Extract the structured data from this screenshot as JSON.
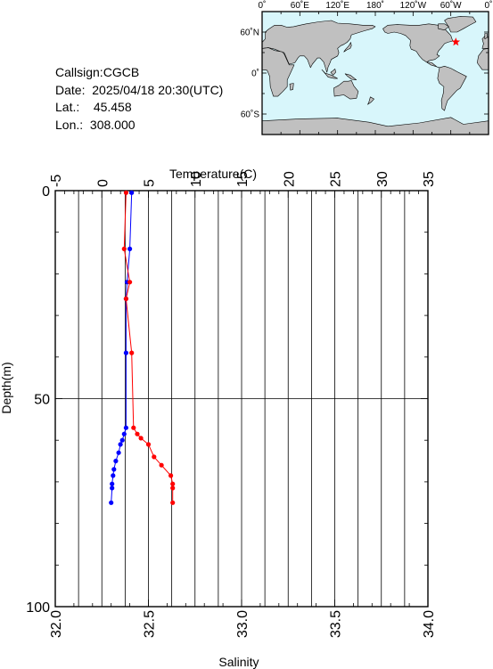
{
  "station": {
    "callsign_label": "Callsign:",
    "callsign": "CGCB",
    "date_label": "Date:",
    "date": "2025/04/18 20:30(UTC)",
    "lat_label": "Lat.:",
    "lat": "45.458",
    "lon_label": "Lon.:",
    "lon": "308.000"
  },
  "map": {
    "top_labels": [
      "0˚",
      "60˚E",
      "120˚E",
      "180˚",
      "120˚W",
      "60˚W",
      "0˚"
    ],
    "left_labels": [
      "60˚N",
      "0˚",
      "60˚S"
    ],
    "ocean_color": "#d8f6fb",
    "land_color": "#c0c0c0",
    "marker_color": "#ff0000",
    "marker": {
      "lon": 308.0,
      "lat": 45.458
    }
  },
  "chart_data": {
    "type": "line",
    "xlabel_top": "Temperature(C)",
    "xlabel_bottom": "Salinity",
    "ylabel": "Depth(m)",
    "temperature_ticks": [
      "-5",
      "0",
      "5",
      "10",
      "15",
      "20",
      "25",
      "30",
      "35"
    ],
    "salinity_ticks": [
      "32.0",
      "32.5",
      "33.0",
      "33.5",
      "34.0"
    ],
    "depth_ticks": [
      "0",
      "50",
      "100"
    ],
    "temperature_range": [
      -5,
      35
    ],
    "salinity_range": [
      32.0,
      34.0
    ],
    "depth_range": [
      0,
      100
    ],
    "series": [
      {
        "quantity": "temperature",
        "color": "#0000ff",
        "points": [
          {
            "depth": 0.5,
            "value": 3.2
          },
          {
            "depth": 14,
            "value": 3.0
          },
          {
            "depth": 22,
            "value": 2.7
          },
          {
            "depth": 26,
            "value": 2.6
          },
          {
            "depth": 39,
            "value": 2.6
          },
          {
            "depth": 57,
            "value": 2.6
          },
          {
            "depth": 58.5,
            "value": 2.4
          },
          {
            "depth": 60,
            "value": 2.2
          },
          {
            "depth": 61,
            "value": 2.0
          },
          {
            "depth": 63,
            "value": 1.8
          },
          {
            "depth": 65,
            "value": 1.5
          },
          {
            "depth": 67,
            "value": 1.3
          },
          {
            "depth": 68.5,
            "value": 1.2
          },
          {
            "depth": 70.5,
            "value": 1.1
          },
          {
            "depth": 71.5,
            "value": 1.1
          },
          {
            "depth": 75,
            "value": 1.0
          }
        ]
      },
      {
        "quantity": "salinity",
        "color": "#ff0000",
        "points": [
          {
            "depth": 0.5,
            "value": 32.38
          },
          {
            "depth": 14,
            "value": 32.37
          },
          {
            "depth": 22,
            "value": 32.4
          },
          {
            "depth": 26,
            "value": 32.38
          },
          {
            "depth": 39,
            "value": 32.41
          },
          {
            "depth": 57,
            "value": 32.42
          },
          {
            "depth": 58.5,
            "value": 32.44
          },
          {
            "depth": 59.5,
            "value": 32.46
          },
          {
            "depth": 61,
            "value": 32.5
          },
          {
            "depth": 64,
            "value": 32.53
          },
          {
            "depth": 66,
            "value": 32.57
          },
          {
            "depth": 68.5,
            "value": 32.62
          },
          {
            "depth": 70.5,
            "value": 32.63
          },
          {
            "depth": 71.5,
            "value": 32.63
          },
          {
            "depth": 75,
            "value": 32.63
          }
        ]
      }
    ]
  }
}
